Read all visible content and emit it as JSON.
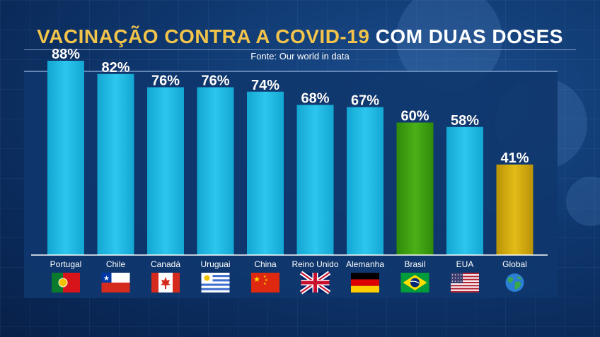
{
  "header": {
    "title_part1": "VACINAÇÃO CONTRA A COVID-19",
    "title_part2": "COM DUAS DOSES",
    "source": "Fonte: Our world in data"
  },
  "colors": {
    "bar_default": "#1cb4dc",
    "bar_brasil": "#3a9c0e",
    "bar_global": "#d4ac0c",
    "title_accent": "#f3c44a"
  },
  "chart_data": {
    "type": "bar",
    "categories": [
      "Portugal",
      "Chile",
      "Canadá",
      "Uruguai",
      "China",
      "Reino Unido",
      "Alemanha",
      "Brasil",
      "EUA",
      "Global"
    ],
    "values": [
      88,
      82,
      76,
      76,
      74,
      68,
      67,
      60,
      58,
      41
    ],
    "data_labels": [
      "88%",
      "82%",
      "76%",
      "76%",
      "74%",
      "68%",
      "67%",
      "60%",
      "58%",
      "41%"
    ],
    "flag_icons": [
      "portugal-flag-icon",
      "chile-flag-icon",
      "canada-flag-icon",
      "uruguay-flag-icon",
      "china-flag-icon",
      "uk-flag-icon",
      "germany-flag-icon",
      "brazil-flag-icon",
      "usa-flag-icon",
      "globe-icon"
    ],
    "bar_colors": [
      "#1cb4dc",
      "#1cb4dc",
      "#1cb4dc",
      "#1cb4dc",
      "#1cb4dc",
      "#1cb4dc",
      "#1cb4dc",
      "#3a9c0e",
      "#1cb4dc",
      "#d4ac0c"
    ],
    "ylim": [
      0,
      100
    ],
    "grid": false,
    "legend": "none"
  }
}
